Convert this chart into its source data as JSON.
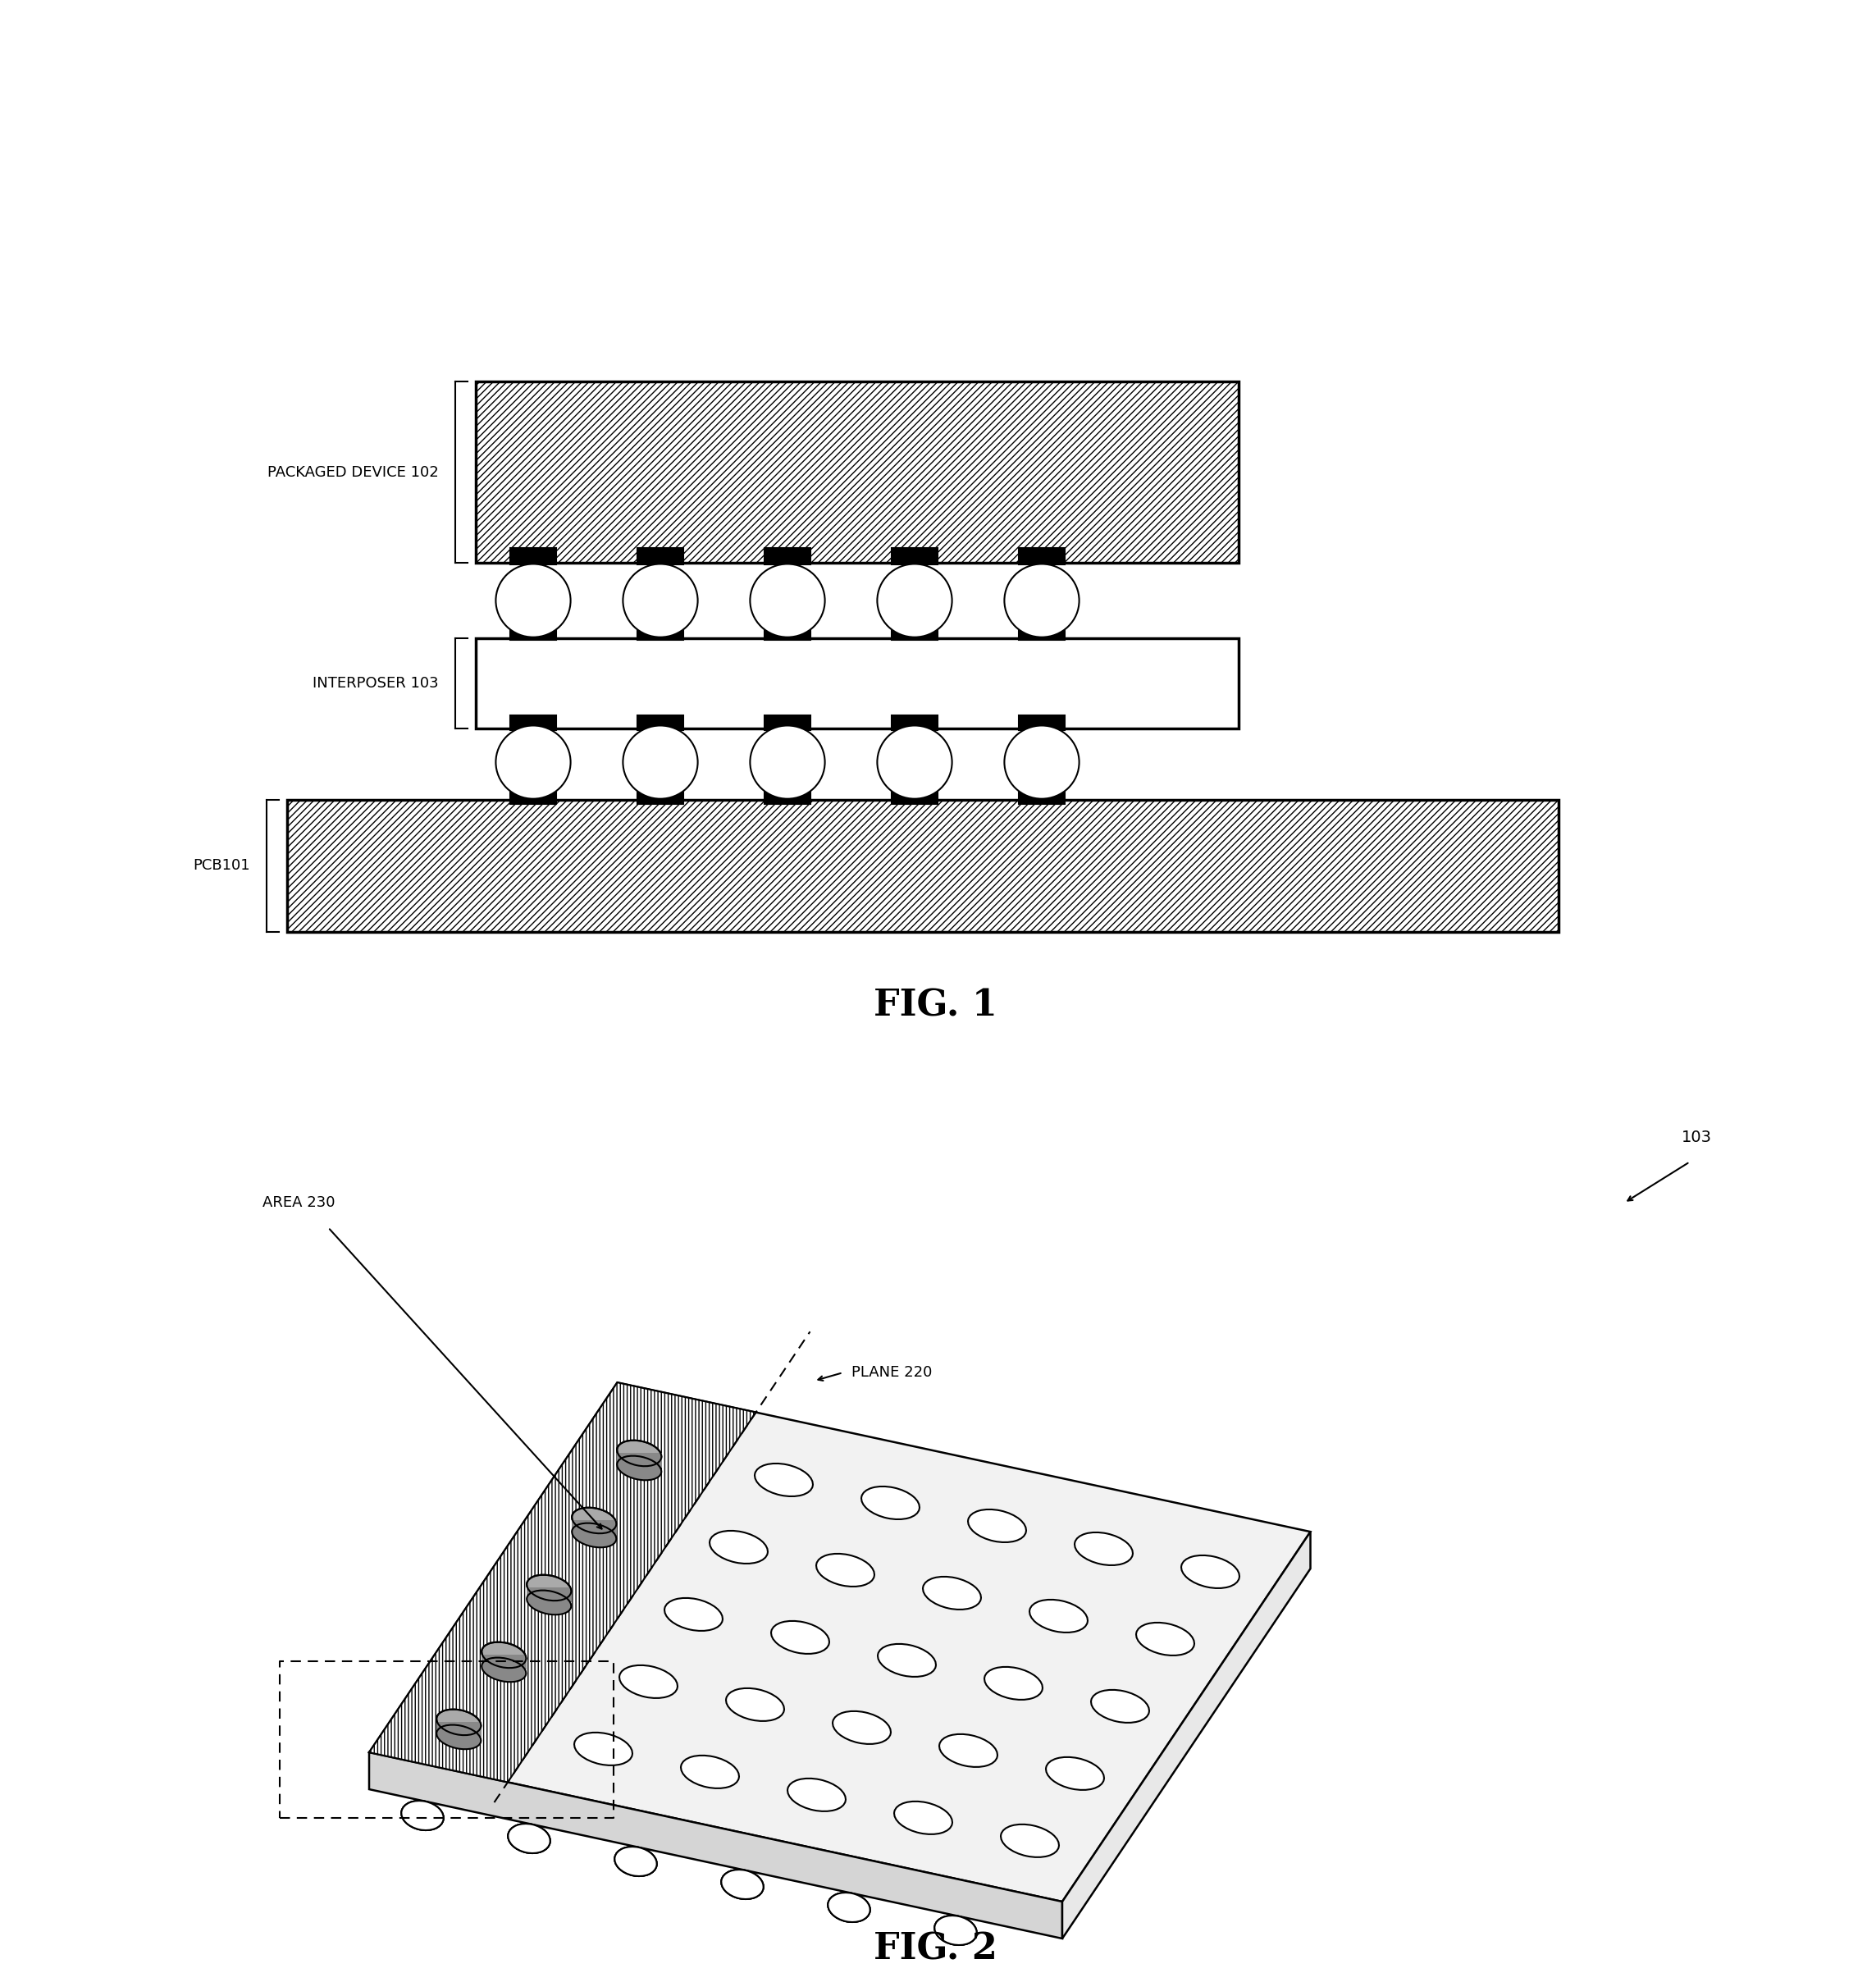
{
  "bg_color": "#ffffff",
  "line_color": "#000000",
  "fig1_title": "FIG. 1",
  "fig2_title": "FIG. 2",
  "label_packaged": "PACKAGED DEVICE 102",
  "label_interposer": "INTERPOSER 103",
  "label_pcb": "PCB101",
  "label_103": "103",
  "label_plane": "PLANE 220",
  "label_area": "AREA 230"
}
